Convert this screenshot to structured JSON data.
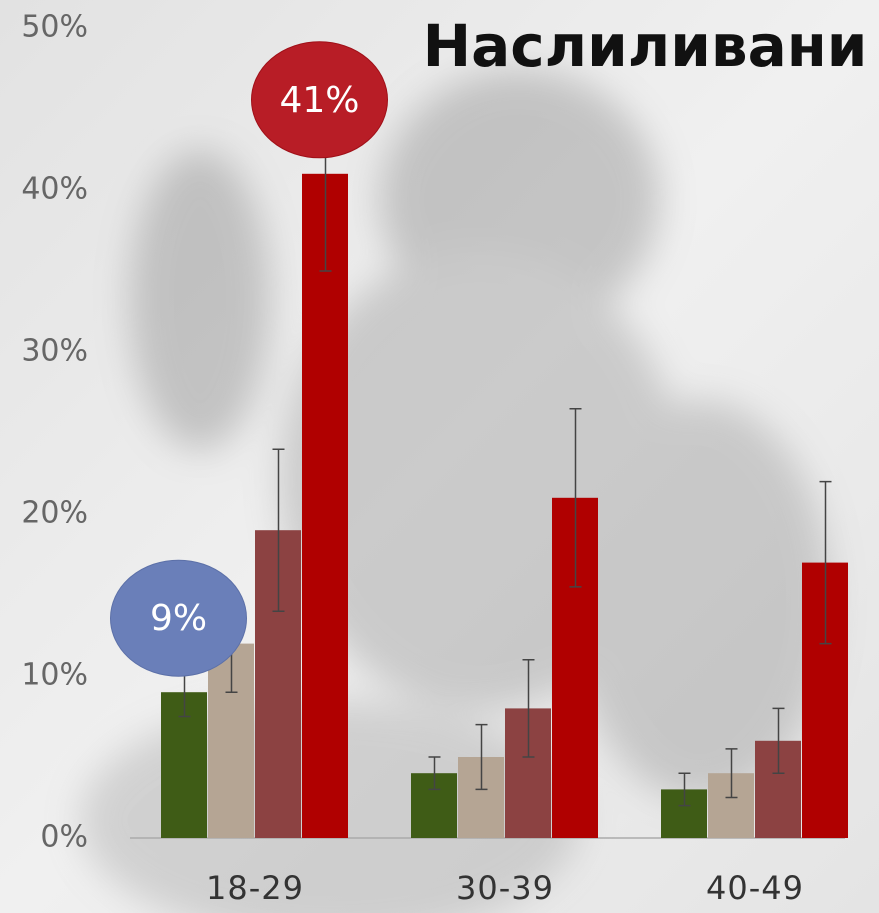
{
  "chart_data": {
    "type": "bar",
    "title": "Наслиливани",
    "categories": [
      "18-29",
      "30-39",
      "40-49"
    ],
    "series": [
      {
        "color": "#3f5c16",
        "values": [
          9,
          4,
          3
        ],
        "errors": [
          1.5,
          1,
          1
        ],
        "value_labels": [
          "9%",
          null,
          null
        ]
      },
      {
        "color": "#b5a594",
        "values": [
          12,
          5,
          4
        ],
        "errors": [
          3,
          2,
          1.5
        ]
      },
      {
        "color": "#8c4242",
        "values": [
          19,
          8,
          6
        ],
        "errors": [
          5,
          3,
          2
        ]
      },
      {
        "color": "#b00000",
        "values": [
          41,
          21,
          17
        ],
        "errors": [
          6,
          5.5,
          5
        ],
        "value_labels": [
          "41%",
          null,
          null
        ]
      }
    ],
    "ylim": [
      0,
      50
    ],
    "yticks": [
      {
        "value": 0,
        "label": "0%"
      },
      {
        "value": 10,
        "label": "10%"
      },
      {
        "value": 20,
        "label": "20%"
      },
      {
        "value": 30,
        "label": "30%"
      },
      {
        "value": 40,
        "label": "40%"
      },
      {
        "value": 50,
        "label": "50%"
      }
    ]
  }
}
